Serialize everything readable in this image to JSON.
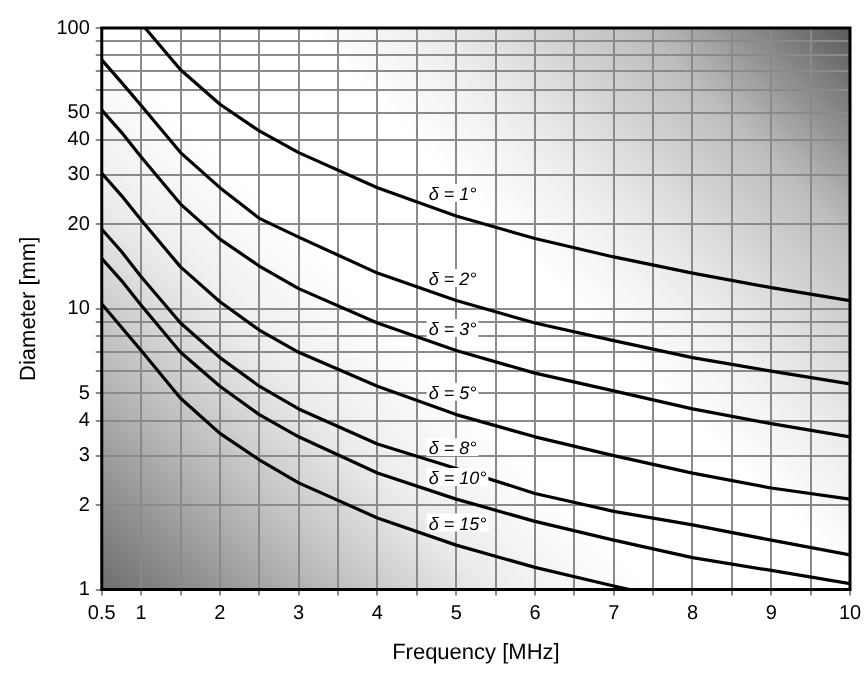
{
  "chart_data": {
    "type": "line",
    "xlabel": "Frequency [MHz]",
    "ylabel": "Diameter [mm]",
    "x": [
      0.5,
      0.75,
      1,
      1.5,
      2,
      2.5,
      3,
      4,
      5,
      6,
      7,
      8,
      9,
      10
    ],
    "series": [
      {
        "name": "δ = 1°",
        "color": "#000000",
        "x": [
          1.05,
          1.5,
          2,
          2.5,
          3,
          4,
          5,
          6,
          7,
          8,
          9,
          10
        ],
        "values": [
          100,
          71,
          53.5,
          43,
          36,
          27,
          21.4,
          17.8,
          15.3,
          13.4,
          11.9,
          10.7
        ]
      },
      {
        "name": "δ = 2°",
        "color": "#000000",
        "values": [
          77,
          64,
          53,
          36,
          27,
          21,
          18,
          13.4,
          10.7,
          8.9,
          7.7,
          6.7,
          6.0,
          5.4
        ]
      },
      {
        "name": "δ = 3°",
        "color": "#000000",
        "values": [
          51,
          42.5,
          34.7,
          23.6,
          17.7,
          14.2,
          11.8,
          8.9,
          7.1,
          5.9,
          5.1,
          4.4,
          3.9,
          3.5
        ]
      },
      {
        "name": "δ = 5°",
        "color": "#000000",
        "values": [
          30.4,
          25.3,
          20.7,
          14.1,
          10.6,
          8.4,
          7.0,
          5.3,
          4.2,
          3.5,
          3.0,
          2.6,
          2.3,
          2.1
        ]
      },
      {
        "name": "δ = 8°",
        "color": "#000000",
        "values": [
          19.2,
          16,
          13,
          8.9,
          6.7,
          5.3,
          4.4,
          3.3,
          2.7,
          2.2,
          1.9,
          1.7,
          1.5,
          1.33
        ]
      },
      {
        "name": "δ = 10°",
        "color": "#000000",
        "values": [
          15.1,
          12.6,
          10.3,
          7.0,
          5.3,
          4.2,
          3.5,
          2.6,
          2.1,
          1.75,
          1.5,
          1.3,
          1.17,
          1.05
        ]
      },
      {
        "name": "δ = 15°",
        "color": "#000000",
        "x": [
          0.5,
          0.75,
          1,
          1.5,
          2,
          2.5,
          3,
          4,
          5,
          6,
          7,
          7.2
        ],
        "values": [
          10.4,
          8.6,
          7.1,
          4.8,
          3.6,
          2.9,
          2.4,
          1.8,
          1.44,
          1.2,
          1.03,
          1.0
        ]
      }
    ],
    "xlim": [
      0.5,
      10
    ],
    "xticks": [
      0.5,
      1,
      {
        "value": 1.5,
        "label": null
      },
      2,
      {
        "value": 2.5,
        "label": null
      },
      3,
      {
        "value": 3.5,
        "label": null
      },
      4,
      {
        "value": 4.5,
        "label": null
      },
      5,
      {
        "value": 5.5,
        "label": null
      },
      6,
      {
        "value": 6.5,
        "label": null
      },
      7,
      {
        "value": 7.5,
        "label": null
      },
      8,
      {
        "value": 8.5,
        "label": null
      },
      9,
      {
        "value": 9.5,
        "label": null
      },
      10
    ],
    "ylim": [
      1,
      100
    ],
    "yticks": [
      1,
      2,
      3,
      4,
      5,
      {
        "value": 6,
        "label": null
      },
      {
        "value": 7,
        "label": null
      },
      {
        "value": 8,
        "label": null
      },
      {
        "value": 9,
        "label": null
      },
      10,
      20,
      30,
      40,
      50,
      {
        "value": 60,
        "label": null
      },
      {
        "value": 70,
        "label": null
      },
      {
        "value": 80,
        "label": null
      },
      {
        "value": 90,
        "label": null
      },
      100
    ],
    "log": "y",
    "grid": true,
    "legend": false,
    "marker": "none",
    "line_style": "solid"
  }
}
